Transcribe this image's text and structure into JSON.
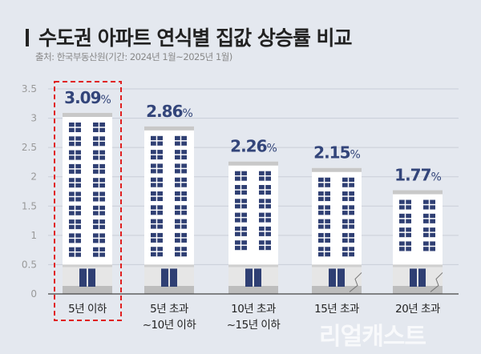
{
  "title": "수도권 아파트 연식별 집값 상승률 비교",
  "source": "출처: 한국부동산원(기간: 2024년 1월~2025년 1월)",
  "watermark": "리얼캐스트",
  "colors": {
    "background": "#e4e8ef",
    "value_label": "#33457a",
    "window": "#2f3f73",
    "highlight_box": "#e02020",
    "grid": "#c9ced8"
  },
  "chart_data": {
    "type": "bar",
    "categories": [
      "5년 이하",
      "5년 초과\n~10년 이하",
      "10년 초과\n~15년 이하",
      "15년 초과",
      "20년 초과"
    ],
    "values": [
      3.09,
      2.86,
      2.26,
      2.15,
      1.77
    ],
    "data_labels": [
      "3.09",
      "2.86",
      "2.26",
      "2.15",
      "1.77"
    ],
    "value_suffix": "%",
    "ylim": [
      0,
      3.5
    ],
    "yticks": [
      "0",
      "0.5",
      "1",
      "1.5",
      "2",
      "2.5",
      "3",
      "3.5"
    ],
    "grid": true,
    "highlighted_category": "5년 이하",
    "bar_style": "apartment building illustrations"
  }
}
